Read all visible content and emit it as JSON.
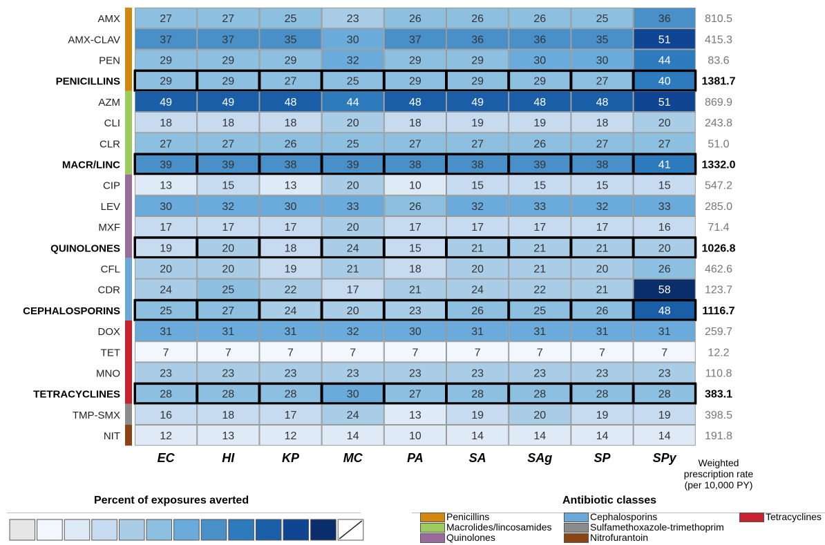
{
  "chart_data": {
    "type": "heatmap",
    "columns": [
      "EC",
      "HI",
      "KP",
      "MC",
      "PA",
      "SA",
      "SAg",
      "SP",
      "SPy"
    ],
    "rate_label": [
      "Weighted",
      "prescription rate",
      "(per 10,000 PY)"
    ],
    "rows": [
      {
        "label": "AMX",
        "summary": false,
        "class": "penicillins",
        "values": [
          27,
          27,
          25,
          23,
          26,
          26,
          26,
          25,
          36
        ],
        "rate": "810.5"
      },
      {
        "label": "AMX-CLAV",
        "summary": false,
        "class": "penicillins",
        "values": [
          37,
          37,
          35,
          30,
          37,
          36,
          36,
          35,
          51
        ],
        "rate": "415.3"
      },
      {
        "label": "PEN",
        "summary": false,
        "class": "penicillins",
        "values": [
          29,
          29,
          29,
          32,
          29,
          29,
          30,
          30,
          44
        ],
        "rate": "83.6"
      },
      {
        "label": "PENICILLINS",
        "summary": true,
        "class": "penicillins",
        "values": [
          29,
          29,
          27,
          25,
          29,
          29,
          29,
          27,
          40
        ],
        "rate": "1381.7"
      },
      {
        "label": "AZM",
        "summary": false,
        "class": "macrolides",
        "values": [
          49,
          49,
          48,
          44,
          48,
          49,
          48,
          48,
          51
        ],
        "rate": "869.9"
      },
      {
        "label": "CLI",
        "summary": false,
        "class": "macrolides",
        "values": [
          18,
          18,
          18,
          20,
          18,
          19,
          19,
          18,
          20
        ],
        "rate": "243.8"
      },
      {
        "label": "CLR",
        "summary": false,
        "class": "macrolides",
        "values": [
          27,
          27,
          26,
          25,
          27,
          27,
          26,
          27,
          27
        ],
        "rate": "51.0"
      },
      {
        "label": "MACR/LINC",
        "summary": true,
        "class": "macrolides",
        "values": [
          39,
          39,
          38,
          39,
          38,
          38,
          39,
          38,
          41
        ],
        "rate": "1332.0"
      },
      {
        "label": "CIP",
        "summary": false,
        "class": "quinolones",
        "values": [
          13,
          15,
          13,
          20,
          10,
          15,
          15,
          15,
          15
        ],
        "rate": "547.2"
      },
      {
        "label": "LEV",
        "summary": false,
        "class": "quinolones",
        "values": [
          30,
          32,
          30,
          33,
          26,
          32,
          33,
          32,
          33
        ],
        "rate": "285.0"
      },
      {
        "label": "MXF",
        "summary": false,
        "class": "quinolones",
        "values": [
          17,
          17,
          17,
          20,
          17,
          17,
          17,
          17,
          16
        ],
        "rate": "71.4"
      },
      {
        "label": "QUINOLONES",
        "summary": true,
        "class": "quinolones",
        "values": [
          19,
          20,
          18,
          24,
          15,
          21,
          21,
          21,
          20
        ],
        "rate": "1026.8"
      },
      {
        "label": "CFL",
        "summary": false,
        "class": "cephalosporins",
        "values": [
          20,
          20,
          19,
          21,
          18,
          20,
          21,
          20,
          26
        ],
        "rate": "462.6"
      },
      {
        "label": "CDR",
        "summary": false,
        "class": "cephalosporins",
        "values": [
          24,
          25,
          22,
          17,
          21,
          24,
          22,
          21,
          58
        ],
        "rate": "123.7"
      },
      {
        "label": "CEPHALOSPORINS",
        "summary": true,
        "class": "cephalosporins",
        "values": [
          25,
          27,
          24,
          20,
          23,
          26,
          25,
          26,
          48
        ],
        "rate": "1116.7"
      },
      {
        "label": "DOX",
        "summary": false,
        "class": "tetracyclines",
        "values": [
          31,
          31,
          31,
          32,
          30,
          31,
          31,
          31,
          31
        ],
        "rate": "259.7"
      },
      {
        "label": "TET",
        "summary": false,
        "class": "tetracyclines",
        "values": [
          7,
          7,
          7,
          7,
          7,
          7,
          7,
          7,
          7
        ],
        "rate": "12.2"
      },
      {
        "label": "MNO",
        "summary": false,
        "class": "tetracyclines",
        "values": [
          23,
          23,
          23,
          23,
          23,
          23,
          23,
          23,
          23
        ],
        "rate": "110.8"
      },
      {
        "label": "TETRACYCLINES",
        "summary": true,
        "class": "tetracyclines",
        "values": [
          28,
          28,
          28,
          30,
          27,
          28,
          28,
          28,
          28
        ],
        "rate": "383.1"
      },
      {
        "label": "TMP-SMX",
        "summary": false,
        "class": "tmpsmx",
        "values": [
          16,
          18,
          17,
          24,
          13,
          19,
          20,
          19,
          19
        ],
        "rate": "398.5"
      },
      {
        "label": "NIT",
        "summary": false,
        "class": "nitrofurantoin",
        "values": [
          12,
          13,
          12,
          14,
          10,
          14,
          14,
          14,
          14
        ],
        "rate": "191.8"
      }
    ],
    "class_colors": {
      "penicillins": "#d4870f",
      "macrolides": "#9ccc5c",
      "quinolones": "#9b6b9e",
      "cephalosporins": "#6aa8d8",
      "tetracyclines": "#c8232c",
      "tmpsmx": "#8c8c8c",
      "nitrofurantoin": "#8b4513"
    },
    "color_scale": {
      "title": "Percent of exposures averted",
      "swatches": [
        "#e6e6e6",
        "#f1f7fd",
        "#deebf7",
        "#c6dbef",
        "#a9cde6",
        "#8cbfe0",
        "#6aabdb",
        "#4a90c8",
        "#2d7abd",
        "#1a5ea8",
        "#0f4592",
        "#0a2e6b"
      ],
      "missing": "n/a"
    },
    "class_legend": {
      "title": "Antibiotic classes",
      "items": [
        {
          "label": "Penicillins",
          "class": "penicillins"
        },
        {
          "label": "Macrolides/lincosamides",
          "class": "macrolides"
        },
        {
          "label": "Quinolones",
          "class": "quinolones"
        },
        {
          "label": "Cephalosporins",
          "class": "cephalosporins"
        },
        {
          "label": "Sulfamethoxazole-trimethoprim",
          "class": "tmpsmx"
        },
        {
          "label": "Nitrofurantoin",
          "class": "nitrofurantoin"
        },
        {
          "label": "Tetracyclines",
          "class": "tetracyclines"
        }
      ]
    }
  }
}
